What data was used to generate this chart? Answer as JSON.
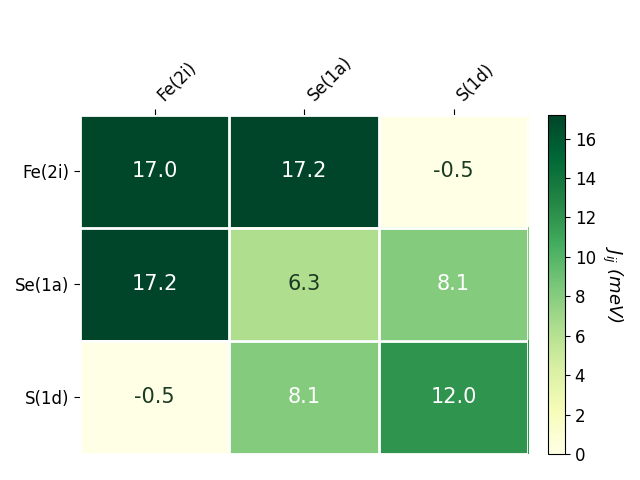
{
  "labels": [
    "Fe(2i)",
    "Se(1a)",
    "S(1d)"
  ],
  "matrix": [
    [
      17.0,
      17.2,
      -0.5
    ],
    [
      17.2,
      6.3,
      8.1
    ],
    [
      -0.5,
      8.1,
      12.0
    ]
  ],
  "vmin": 0,
  "vmax": 17.2,
  "cmap": "YlGn",
  "colorbar_label": "$J_{ij}$ (meV)",
  "colorbar_ticks": [
    0,
    2,
    4,
    6,
    8,
    10,
    12,
    14,
    16
  ],
  "text_threshold": 0.45,
  "dark_text_color": "#1a3a22",
  "light_text_color": "white",
  "text_fontsize": 15,
  "tick_fontsize": 12,
  "colorbar_fontsize": 13,
  "background_color": "white"
}
